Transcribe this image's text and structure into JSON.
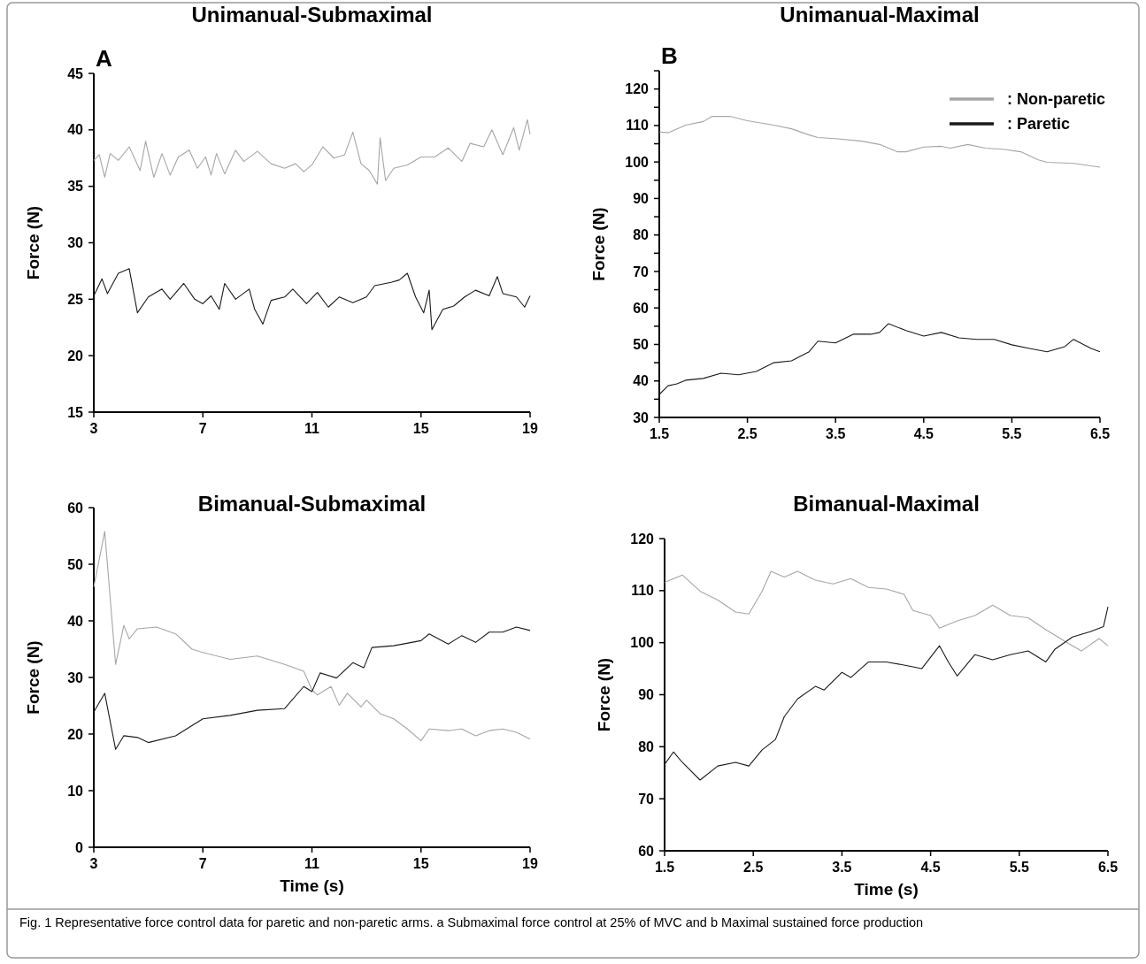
{
  "chart_data": [
    {
      "type": "line",
      "title": "Unimanual-Submaximal",
      "ylabel": "Force (N)",
      "annotations": [
        "A"
      ],
      "xlim": [
        3,
        19
      ],
      "xticks": [
        3,
        7,
        11,
        15,
        19
      ],
      "ylim": [
        15,
        45
      ],
      "yticks": [
        15,
        20,
        25,
        30,
        35,
        40,
        45
      ],
      "grid": false,
      "legend": false,
      "series": [
        {
          "color": "#a6a6a6",
          "x": [
            3,
            3.2,
            3.4,
            3.6,
            3.9,
            4.3,
            4.7,
            4.9,
            5.2,
            5.5,
            5.8,
            6.1,
            6.5,
            6.8,
            7.1,
            7.3,
            7.5,
            7.8,
            8.2,
            8.5,
            9,
            9.5,
            10,
            10.4,
            10.7,
            11,
            11.4,
            11.8,
            12.2,
            12.5,
            12.8,
            13.1,
            13.4,
            13.5,
            13.7,
            14,
            14.5,
            15,
            15.5,
            16,
            16.5,
            16.8,
            17.3,
            17.6,
            18,
            18.4,
            18.6,
            18.9,
            19
          ],
          "values": [
            37.3,
            37.8,
            35.8,
            37.9,
            37.3,
            38.5,
            36.4,
            39,
            35.8,
            37.9,
            36,
            37.6,
            38.2,
            36.6,
            37.6,
            36,
            37.9,
            36.1,
            38.2,
            37.2,
            38.1,
            37,
            36.6,
            37,
            36.3,
            36.9,
            38.5,
            37.5,
            37.8,
            39.8,
            37,
            36.4,
            35.2,
            39.3,
            35.5,
            36.6,
            36.9,
            37.6,
            37.6,
            38.4,
            37.2,
            38.8,
            38.5,
            40,
            37.8,
            40.2,
            38.2,
            40.9,
            39.6
          ]
        },
        {
          "color": "#1a1a1a",
          "x": [
            3,
            3.3,
            3.5,
            3.9,
            4.3,
            4.6,
            5,
            5.5,
            5.8,
            6.3,
            6.7,
            7,
            7.3,
            7.6,
            7.8,
            8.2,
            8.7,
            8.9,
            9.2,
            9.5,
            10,
            10.3,
            10.8,
            11.2,
            11.6,
            12,
            12.5,
            13,
            13.3,
            13.9,
            14.2,
            14.5,
            14.8,
            15.1,
            15.3,
            15.4,
            15.8,
            16.2,
            16.6,
            17,
            17.5,
            17.8,
            18,
            18.5,
            18.8,
            19
          ],
          "values": [
            25.3,
            26.8,
            25.5,
            27.3,
            27.7,
            23.8,
            25.2,
            25.9,
            25,
            26.4,
            25,
            24.6,
            25.3,
            24.1,
            26.4,
            25,
            25.9,
            24.1,
            22.8,
            24.9,
            25.2,
            25.9,
            24.6,
            25.6,
            24.3,
            25.2,
            24.7,
            25.2,
            26.2,
            26.5,
            26.7,
            27.3,
            25.2,
            23.8,
            25.8,
            22.3,
            24.1,
            24.4,
            25.2,
            25.8,
            25.3,
            27,
            25.5,
            25.2,
            24.3,
            25.3
          ]
        }
      ]
    },
    {
      "type": "line",
      "title": "Unimanual-Maximal",
      "ylabel": "Force (N)",
      "annotations": [
        "B"
      ],
      "xlim": [
        1.5,
        6.5
      ],
      "xticks": [
        1.5,
        2.5,
        3.5,
        4.5,
        5.5,
        6.5
      ],
      "ylim": [
        30,
        125
      ],
      "yticks": [
        30,
        {
          "value": 35,
          "label": null
        },
        40,
        {
          "value": 45,
          "label": null
        },
        50,
        {
          "value": 55,
          "label": null
        },
        60,
        {
          "value": 65,
          "label": null
        },
        70,
        {
          "value": 75,
          "label": null
        },
        80,
        {
          "value": 85,
          "label": null
        },
        90,
        {
          "value": 95,
          "label": null
        },
        100,
        {
          "value": 105,
          "label": null
        },
        110,
        {
          "value": 115,
          "label": null
        },
        120,
        {
          "value": 125,
          "label": null
        }
      ],
      "grid": false,
      "legend": "top right",
      "series": [
        {
          "name": ": Non-paretic",
          "color": "#a6a6a6",
          "x": [
            1.5,
            1.6,
            1.8,
            2,
            2.1,
            2.3,
            2.5,
            2.8,
            3,
            3.2,
            3.3,
            3.5,
            3.8,
            4,
            4.2,
            4.3,
            4.5,
            4.7,
            4.8,
            5,
            5.2,
            5.4,
            5.6,
            5.8,
            5.9,
            6.2,
            6.5
          ],
          "values": [
            108.2,
            108,
            110.1,
            111.1,
            112.5,
            112.5,
            111.3,
            110.1,
            109.1,
            107.4,
            106.7,
            106.4,
            105.7,
            104.8,
            102.8,
            102.8,
            104.1,
            104.3,
            103.8,
            104.8,
            103.8,
            103.5,
            102.8,
            100.6,
            99.9,
            99.6,
            98.6
          ]
        },
        {
          "name": ": Paretic",
          "color": "#1a1a1a",
          "x": [
            1.5,
            1.6,
            1.7,
            1.8,
            2,
            2.2,
            2.4,
            2.6,
            2.8,
            3,
            3.2,
            3.3,
            3.5,
            3.7,
            3.9,
            4,
            4.1,
            4.3,
            4.5,
            4.7,
            4.9,
            5.1,
            5.3,
            5.5,
            5.7,
            5.9,
            6.1,
            6.2,
            6.4,
            6.5
          ],
          "values": [
            36.3,
            38.7,
            39.2,
            40.2,
            40.7,
            42.1,
            41.7,
            42.6,
            45,
            45.5,
            48,
            50.9,
            50.4,
            52.8,
            52.8,
            53.3,
            55.7,
            53.8,
            52.3,
            53.3,
            51.8,
            51.4,
            51.4,
            49.9,
            48.9,
            48,
            49.4,
            51.4,
            48.9,
            48
          ]
        }
      ]
    },
    {
      "type": "line",
      "title": "Bimanual-Submaximal",
      "xlabel": "Time (s)",
      "ylabel": "Force (N)",
      "xlim": [
        3,
        19
      ],
      "xticks": [
        3,
        7,
        11,
        15,
        19
      ],
      "ylim": [
        0,
        60
      ],
      "yticks": [
        0,
        10,
        20,
        30,
        40,
        50,
        60
      ],
      "grid": false,
      "legend": false,
      "series": [
        {
          "color": "#a6a6a6",
          "x": [
            3,
            3.4,
            3.8,
            4.1,
            4.3,
            4.6,
            5.3,
            6,
            6.6,
            7,
            8,
            9,
            10,
            10.7,
            11,
            11.2,
            11.7,
            12,
            12.3,
            12.8,
            13,
            13.5,
            14,
            14.5,
            15,
            15.3,
            16,
            16.5,
            17,
            17.5,
            18,
            18.5,
            19
          ],
          "values": [
            46,
            55.8,
            32.3,
            39.2,
            36.8,
            38.6,
            38.9,
            37.7,
            35,
            34.4,
            33.2,
            33.8,
            32.3,
            31.1,
            27.8,
            26.9,
            28.4,
            25.1,
            27.2,
            24.8,
            26,
            23.6,
            22.7,
            20.9,
            18.8,
            20.9,
            20.6,
            20.9,
            19.7,
            20.6,
            20.9,
            20.3,
            19.1
          ]
        },
        {
          "color": "#1a1a1a",
          "x": [
            3,
            3.4,
            3.8,
            4.1,
            4.6,
            5,
            6,
            7,
            8,
            9,
            10,
            10.7,
            11,
            11.3,
            11.9,
            12.5,
            12.9,
            13.2,
            14,
            15,
            15.3,
            16,
            16.5,
            17,
            17.5,
            18,
            18.5,
            19
          ],
          "values": [
            23.9,
            27.2,
            17.3,
            19.7,
            19.4,
            18.5,
            19.7,
            22.7,
            23.3,
            24.2,
            24.5,
            28.4,
            27.5,
            30.8,
            29.9,
            32.6,
            31.7,
            35.3,
            35.6,
            36.5,
            37.7,
            35.9,
            37.4,
            36.2,
            38,
            38,
            38.9,
            38.3
          ]
        }
      ]
    },
    {
      "type": "line",
      "title": "Bimanual-Maximal",
      "xlabel": "Time (s)",
      "ylabel": "Force (N)",
      "annotations": [
        "Fig. 1 Representative force control data for paretic and non-paretic arms. a Submaximal force control at 25% of MVC and b Maximal sustained force production"
      ],
      "xlim": [
        1.5,
        6.5
      ],
      "xticks": [
        1.5,
        2.5,
        3.5,
        4.5,
        5.5,
        6.5
      ],
      "ylim": [
        60,
        120
      ],
      "yticks": [
        60,
        70,
        80,
        90,
        100,
        110,
        120
      ],
      "grid": false,
      "legend": false,
      "series": [
        {
          "color": "#a6a6a6",
          "x": [
            1.5,
            1.7,
            1.9,
            2.1,
            2.3,
            2.45,
            2.6,
            2.7,
            2.85,
            3,
            3.2,
            3.4,
            3.6,
            3.8,
            4,
            4.2,
            4.3,
            4.5,
            4.6,
            4.8,
            5,
            5.2,
            5.4,
            5.6,
            5.8,
            6,
            6.2,
            6.4,
            6.5
          ],
          "values": [
            111.6,
            113,
            109.9,
            108.2,
            105.9,
            105.5,
            109.9,
            113.7,
            112.6,
            113.7,
            112,
            111.3,
            112.3,
            110.6,
            110.3,
            109.3,
            106.2,
            105.2,
            102.8,
            104.2,
            105.2,
            107.2,
            105.2,
            104.8,
            102.5,
            100.4,
            98.4,
            100.8,
            99.4
          ]
        },
        {
          "color": "#1a1a1a",
          "x": [
            1.5,
            1.6,
            1.7,
            1.9,
            2.1,
            2.3,
            2.45,
            2.6,
            2.75,
            2.85,
            3,
            3.2,
            3.3,
            3.5,
            3.6,
            3.8,
            4,
            4.2,
            4.4,
            4.6,
            4.7,
            4.8,
            5,
            5.2,
            5.4,
            5.6,
            5.8,
            5.9,
            6.1,
            6.3,
            6.45,
            6.5
          ],
          "values": [
            76.6,
            79,
            77,
            73.6,
            76.3,
            77,
            76.3,
            79.4,
            81.4,
            85.8,
            89.2,
            91.6,
            90.9,
            94.3,
            93.3,
            96.3,
            96.3,
            95.7,
            95,
            99.4,
            96.3,
            93.6,
            97.7,
            96.7,
            97.7,
            98.4,
            96.3,
            98.7,
            101.1,
            102.1,
            103.1,
            106.9
          ]
        }
      ]
    }
  ]
}
